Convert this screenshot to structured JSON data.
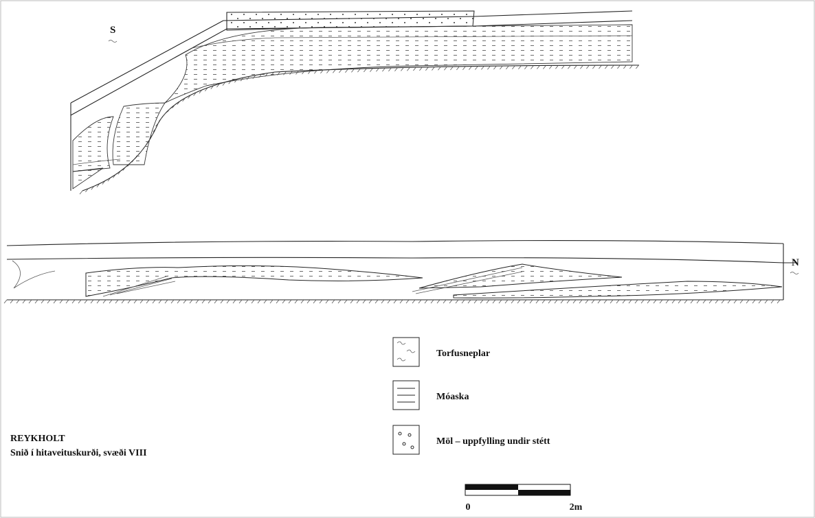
{
  "labels": {
    "south": "S",
    "north": "N"
  },
  "legend": [
    {
      "label": "Torfusneplar"
    },
    {
      "label": "Móaska"
    },
    {
      "label": "Möl – uppfylling undir stétt"
    }
  ],
  "caption": {
    "title": "REYKHOLT",
    "subtitle": "Snið í hitaveituskurði, svæði VIII"
  },
  "scale": {
    "start": "0",
    "end": "2m"
  }
}
